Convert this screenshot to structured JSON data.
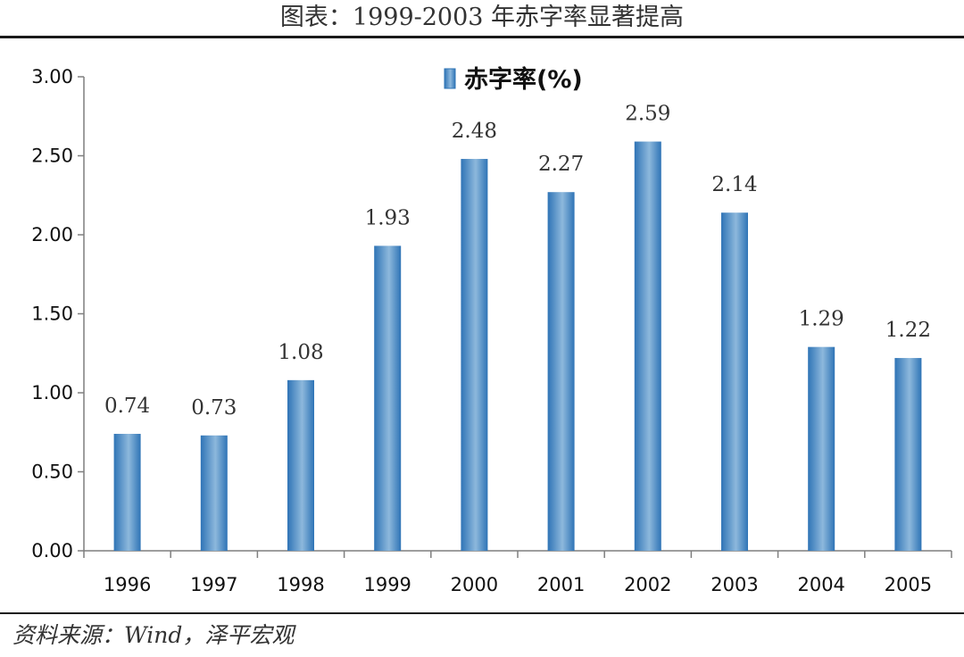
{
  "title": "图表：1999-2003 年赤字率显著提高",
  "source": "资料来源：Wind，泽平宏观",
  "chart_data": {
    "type": "bar",
    "categories": [
      "1996",
      "1997",
      "1998",
      "1999",
      "2000",
      "2001",
      "2002",
      "2003",
      "2004",
      "2005"
    ],
    "series": [
      {
        "name": "赤字率(%)",
        "values": [
          0.74,
          0.73,
          1.08,
          1.93,
          2.48,
          2.27,
          2.59,
          2.14,
          1.29,
          1.22
        ],
        "labels": [
          "0.74",
          "0.73",
          "1.08",
          "1.93",
          "2.48",
          "2.27",
          "2.59",
          "2.14",
          "1.29",
          "1.22"
        ]
      }
    ],
    "yticks": [
      "0.00",
      "0.50",
      "1.00",
      "1.50",
      "2.00",
      "2.50",
      "3.00"
    ],
    "ylim": [
      0,
      3
    ],
    "grid": false,
    "legend_position": "top-center",
    "bar_color": "#3f86c4"
  }
}
